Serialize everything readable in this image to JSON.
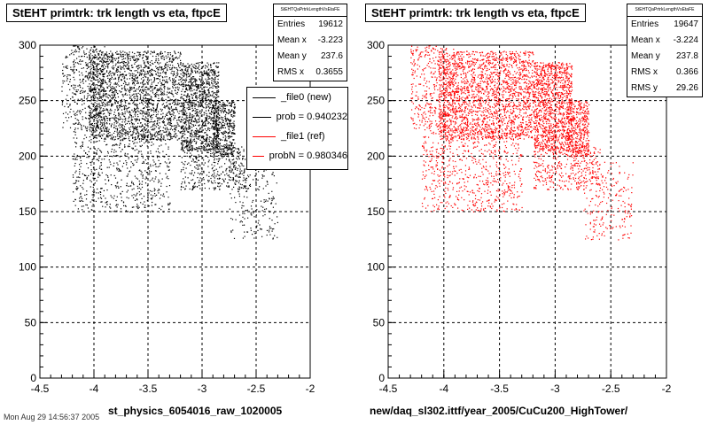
{
  "chart_data": [
    {
      "type": "scatter",
      "title": "StEHT primtrk: trk length vs eta, ftpcE",
      "xlabel": "st_physics_6054016_raw_1020005",
      "ylabel": "",
      "xlim": [
        -4.5,
        -2
      ],
      "ylim": [
        0,
        300
      ],
      "xticks": [
        "-4.5",
        "-4",
        "-3.5",
        "-3",
        "-2.5",
        "-2"
      ],
      "yticks": [
        "0",
        "50",
        "100",
        "150",
        "200",
        "250",
        "300"
      ],
      "grid": true,
      "marker_color": "#000000",
      "stats": {
        "name": "StEHTQaPrtrkLengthVsEtaFE",
        "rows": [
          {
            "label": "Entries",
            "value": "19612"
          },
          {
            "label": "Mean x",
            "value": "-3.223"
          },
          {
            "label": "Mean y",
            "value": "237.6"
          },
          {
            "label": "RMS x",
            "value": "0.3655"
          }
        ]
      },
      "legend": {
        "placement": "top-right",
        "entries": [
          {
            "label": "_file0 (new)",
            "color": "#000000"
          },
          {
            "label": "prob = 0.940232",
            "color": "#000000"
          },
          {
            "label": "_file1 (ref)",
            "color": "#ff0000"
          },
          {
            "label": "probN = 0.980346",
            "color": "#ff0000"
          }
        ]
      },
      "distribution": {
        "regions": [
          {
            "x": [
              -4.3,
              -3.9
            ],
            "y": [
              225,
              300
            ],
            "weight": 0.08
          },
          {
            "x": [
              -4.05,
              -3.2
            ],
            "y": [
              215,
              295
            ],
            "weight": 0.38
          },
          {
            "x": [
              -3.2,
              -2.85
            ],
            "y": [
              205,
              285
            ],
            "weight": 0.22
          },
          {
            "x": [
              -2.9,
              -2.7
            ],
            "y": [
              200,
              250
            ],
            "weight": 0.08
          },
          {
            "x": [
              -4.2,
              -3.3
            ],
            "y": [
              150,
              225
            ],
            "weight": 0.13
          },
          {
            "x": [
              -3.2,
              -2.6
            ],
            "y": [
              170,
              210
            ],
            "weight": 0.07
          },
          {
            "x": [
              -2.75,
              -2.3
            ],
            "y": [
              125,
              195
            ],
            "weight": 0.04
          }
        ]
      }
    },
    {
      "type": "scatter",
      "title": "StEHT primtrk: trk length vs eta, ftpcE",
      "xlabel": "new/daq_sl302.ittf/year_2005/CuCu200_HighTower/",
      "ylabel": "",
      "xlim": [
        -4.5,
        -2
      ],
      "ylim": [
        0,
        300
      ],
      "xticks": [
        "-4.5",
        "-4",
        "-3.5",
        "-3",
        "-2.5",
        "-2"
      ],
      "yticks": [
        "0",
        "50",
        "100",
        "150",
        "200",
        "250",
        "300"
      ],
      "grid": true,
      "marker_color": "#ff0000",
      "stats": {
        "name": "StEHTQaPrtrkLengthVsEtaFE",
        "rows": [
          {
            "label": "Entries",
            "value": "19647"
          },
          {
            "label": "Mean x",
            "value": "-3.224"
          },
          {
            "label": "Mean y",
            "value": "237.8"
          },
          {
            "label": "RMS x",
            "value": "0.366"
          },
          {
            "label": "RMS y",
            "value": "29.26"
          }
        ]
      },
      "distribution": {
        "regions": [
          {
            "x": [
              -4.3,
              -3.9
            ],
            "y": [
              225,
              300
            ],
            "weight": 0.08
          },
          {
            "x": [
              -4.05,
              -3.2
            ],
            "y": [
              215,
              295
            ],
            "weight": 0.38
          },
          {
            "x": [
              -3.2,
              -2.85
            ],
            "y": [
              205,
              285
            ],
            "weight": 0.22
          },
          {
            "x": [
              -2.9,
              -2.7
            ],
            "y": [
              200,
              250
            ],
            "weight": 0.08
          },
          {
            "x": [
              -4.2,
              -3.3
            ],
            "y": [
              150,
              225
            ],
            "weight": 0.13
          },
          {
            "x": [
              -3.2,
              -2.6
            ],
            "y": [
              170,
              210
            ],
            "weight": 0.07
          },
          {
            "x": [
              -2.75,
              -2.3
            ],
            "y": [
              125,
              195
            ],
            "weight": 0.04
          }
        ]
      }
    }
  ],
  "footer": "Mon Aug 29 14:56:37 2005"
}
